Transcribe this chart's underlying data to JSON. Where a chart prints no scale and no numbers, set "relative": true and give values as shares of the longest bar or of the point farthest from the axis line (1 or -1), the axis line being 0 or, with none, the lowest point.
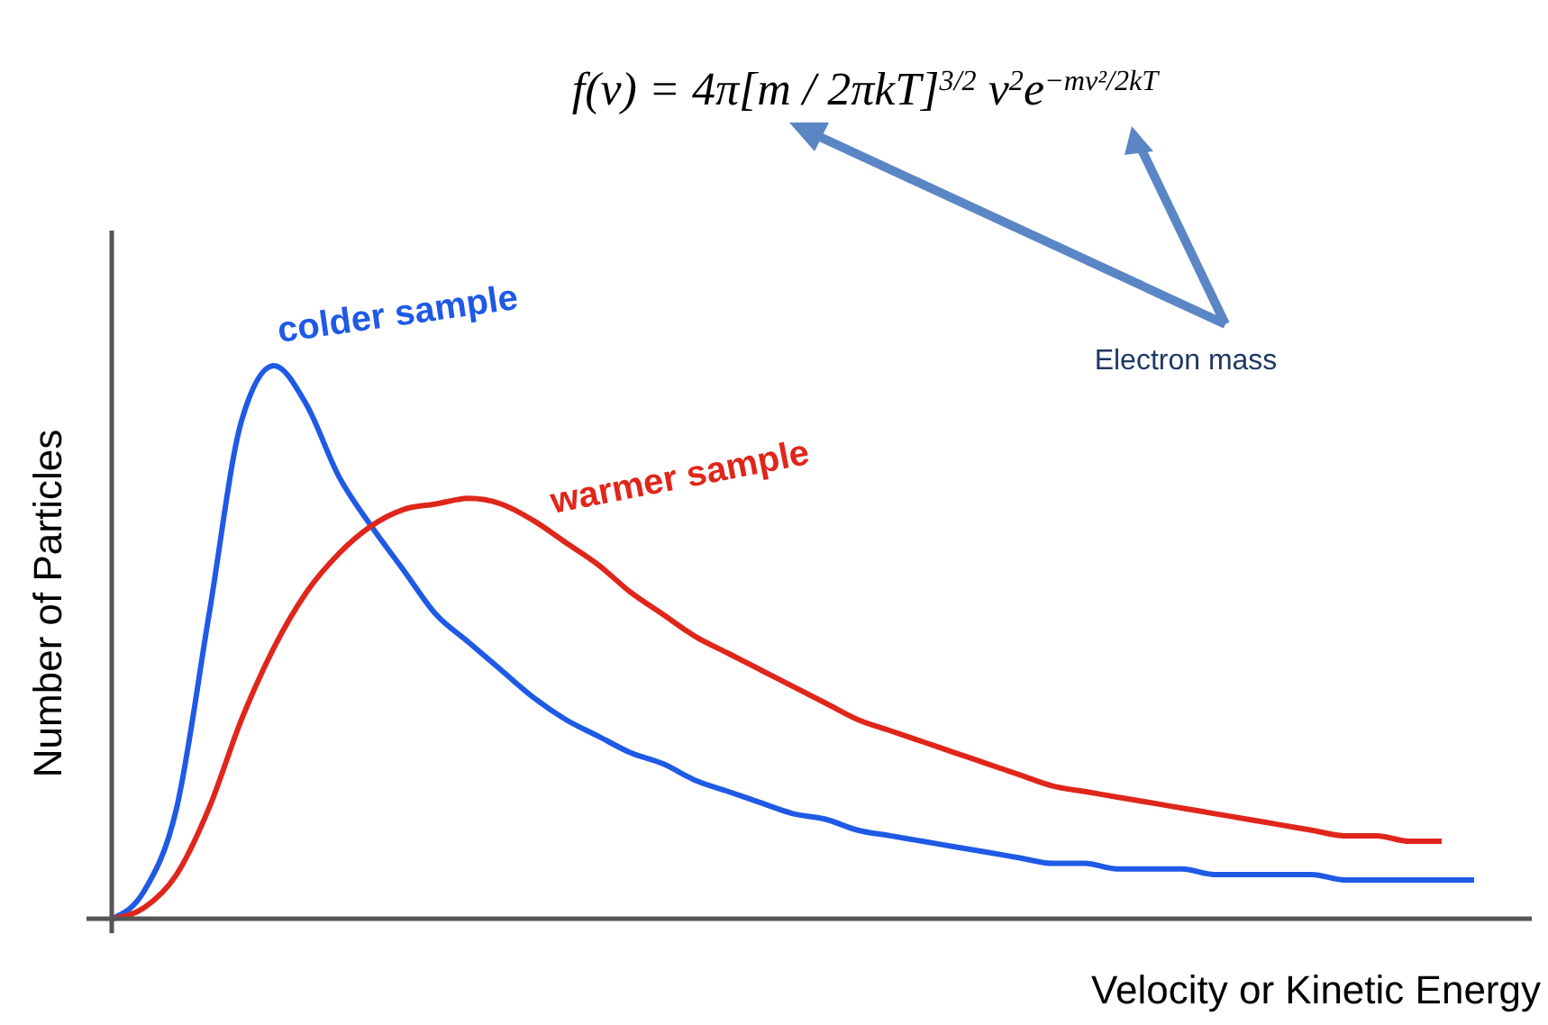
{
  "chart_data": {
    "type": "line",
    "relative": true,
    "xlabel": "Velocity or Kinetic Energy",
    "ylabel": "Number of Particles",
    "annotations": [
      "f(v) = 4π[m / 2πkT]$^{3/2}$ v$^{2}$e$^{−mv²/2kT}$",
      "Electron mass"
    ],
    "categories": [
      null,
      null,
      null,
      null,
      null,
      null,
      null,
      null,
      null,
      null,
      null,
      null,
      null,
      null,
      null,
      null,
      null,
      null,
      null,
      null,
      null,
      null,
      null,
      null,
      null,
      null,
      null,
      null,
      null,
      null,
      null,
      null,
      null,
      null,
      null,
      null,
      null,
      null,
      null,
      null,
      null,
      null,
      null
    ],
    "series": [
      {
        "name": "colder sample",
        "color": "#1f5ae6",
        "values": [
          0,
          0.05,
          0.2,
          0.55,
          0.9,
          1,
          0.93,
          0.8,
          0.71,
          0.63,
          0.55,
          0.5,
          0.45,
          0.4,
          0.36,
          0.33,
          0.3,
          0.28,
          0.25,
          0.23,
          0.21,
          0.19,
          0.18,
          0.16,
          0.15,
          0.14,
          0.13,
          0.12,
          0.11,
          0.1,
          0.1,
          0.09,
          0.09,
          0.09,
          0.08,
          0.08,
          0.08,
          0.08,
          0.07,
          0.07,
          0.07,
          0.07,
          0.07
        ]
      },
      {
        "name": "warmer sample",
        "color": "#e0261b",
        "values": [
          0,
          0.02,
          0.08,
          0.2,
          0.36,
          0.49,
          0.59,
          0.66,
          0.71,
          0.74,
          0.75,
          0.76,
          0.75,
          0.72,
          0.68,
          0.64,
          0.59,
          0.55,
          0.51,
          0.48,
          0.45,
          0.42,
          0.39,
          0.36,
          0.34,
          0.32,
          0.3,
          0.28,
          0.26,
          0.24,
          0.23,
          0.22,
          0.21,
          0.2,
          0.19,
          0.18,
          0.17,
          0.16,
          0.15,
          0.15,
          0.14,
          0.14,
          null
        ]
      }
    ]
  }
}
